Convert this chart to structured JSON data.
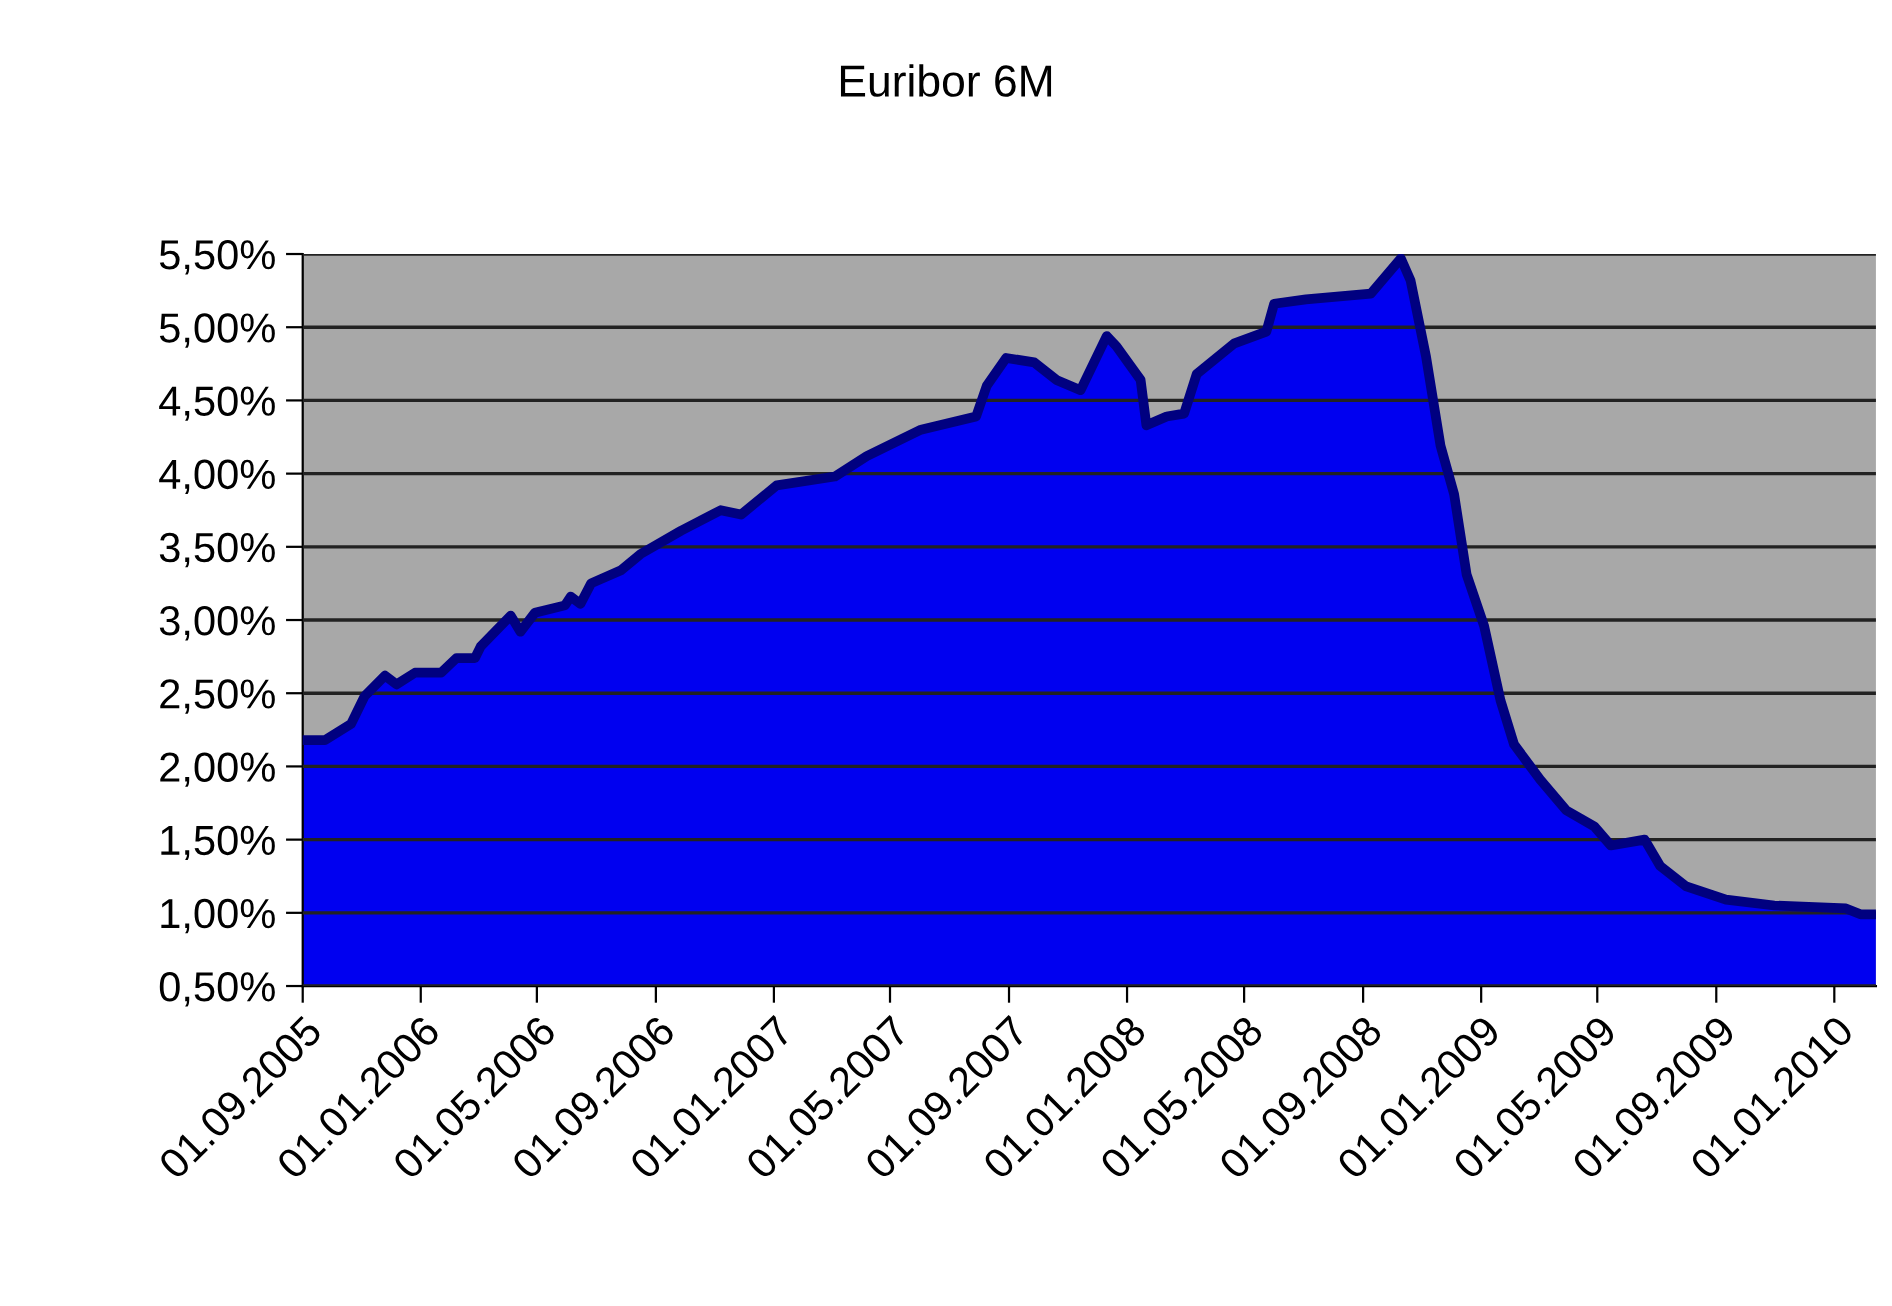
{
  "chart_data": {
    "type": "area",
    "title": "Euribor 6M",
    "x": [
      "2005-09-01",
      "2005-09-24",
      "2005-10-21",
      "2005-11-04",
      "2005-11-25",
      "2005-12-07",
      "2005-12-26",
      "2006-01-22",
      "2006-02-07",
      "2006-02-26",
      "2006-03-04",
      "2006-04-04",
      "2006-04-14",
      "2006-04-29",
      "2006-05-30",
      "2006-06-05",
      "2006-06-15",
      "2006-06-26",
      "2006-07-27",
      "2006-08-16",
      "2006-09-27",
      "2006-11-07",
      "2006-11-28",
      "2007-01-04",
      "2007-03-05",
      "2007-04-07",
      "2007-06-02",
      "2007-07-29",
      "2007-08-09",
      "2007-08-29",
      "2007-09-27",
      "2007-10-20",
      "2007-11-14",
      "2007-12-11",
      "2007-12-21",
      "2008-01-15",
      "2008-01-21",
      "2008-02-11",
      "2008-02-29",
      "2008-03-13",
      "2008-04-21",
      "2008-05-24",
      "2008-06-01",
      "2008-07-04",
      "2008-09-09",
      "2008-10-10",
      "2008-10-20",
      "2008-11-05",
      "2008-11-20",
      "2008-12-04",
      "2008-12-17",
      "2009-01-04",
      "2009-01-21",
      "2009-02-04",
      "2009-03-03",
      "2009-03-30",
      "2009-04-28",
      "2009-05-15",
      "2009-06-19",
      "2009-07-05",
      "2009-08-01",
      "2009-09-11",
      "2009-10-31",
      "2010-01-13",
      "2010-01-28",
      "2010-02-13"
    ],
    "series": [
      {
        "color": "#0000f0",
        "values": [
          2.18,
          2.18,
          2.29,
          2.48,
          2.62,
          2.56,
          2.64,
          2.64,
          2.74,
          2.74,
          2.82,
          3.03,
          2.92,
          3.05,
          3.1,
          3.16,
          3.11,
          3.25,
          3.34,
          3.45,
          3.61,
          3.75,
          3.72,
          3.92,
          3.98,
          4.12,
          4.3,
          4.39,
          4.6,
          4.79,
          4.76,
          4.64,
          4.57,
          4.94,
          4.87,
          4.64,
          4.33,
          4.39,
          4.41,
          4.68,
          4.89,
          4.97,
          5.16,
          5.19,
          5.23,
          5.47,
          5.32,
          4.8,
          4.19,
          3.86,
          3.31,
          2.96,
          2.45,
          2.15,
          1.91,
          1.7,
          1.59,
          1.46,
          1.5,
          1.32,
          1.18,
          1.09,
          1.05,
          1.03,
          0.99,
          0.99
        ]
      }
    ],
    "xlim": [
      "2005-09-01",
      "2010-02-13"
    ],
    "xticks": [
      {
        "value": "2005-09-01",
        "label": "01.09.2005"
      },
      {
        "value": "2006-01-01",
        "label": "01.01.2006"
      },
      {
        "value": "2006-05-01",
        "label": "01.05.2006"
      },
      {
        "value": "2006-09-01",
        "label": "01.09.2006"
      },
      {
        "value": "2007-01-01",
        "label": "01.01.2007"
      },
      {
        "value": "2007-05-01",
        "label": "01.05.2007"
      },
      {
        "value": "2007-09-01",
        "label": "01.09.2007"
      },
      {
        "value": "2008-01-01",
        "label": "01.01.2008"
      },
      {
        "value": "2008-05-01",
        "label": "01.05.2008"
      },
      {
        "value": "2008-09-01",
        "label": "01.09.2008"
      },
      {
        "value": "2009-01-01",
        "label": "01.01.2009"
      },
      {
        "value": "2009-05-01",
        "label": "01.05.2009"
      },
      {
        "value": "2009-09-01",
        "label": "01.09.2009"
      },
      {
        "value": "2010-01-01",
        "label": "01.01.2010"
      }
    ],
    "ylim": [
      0.5,
      5.5
    ],
    "yticks": [
      {
        "value": 0.5,
        "label": "0,50%"
      },
      {
        "value": 1.0,
        "label": "1,00%"
      },
      {
        "value": 1.5,
        "label": "1,50%"
      },
      {
        "value": 2.0,
        "label": "2,00%"
      },
      {
        "value": 2.5,
        "label": "2,50%"
      },
      {
        "value": 3.0,
        "label": "3,00%"
      },
      {
        "value": 3.5,
        "label": "3,50%"
      },
      {
        "value": 4.0,
        "label": "4,00%"
      },
      {
        "value": 4.5,
        "label": "4,50%"
      },
      {
        "value": 5.0,
        "label": "5,00%"
      },
      {
        "value": 5.5,
        "label": "5,50%"
      }
    ],
    "grid": "y",
    "legend": false
  }
}
